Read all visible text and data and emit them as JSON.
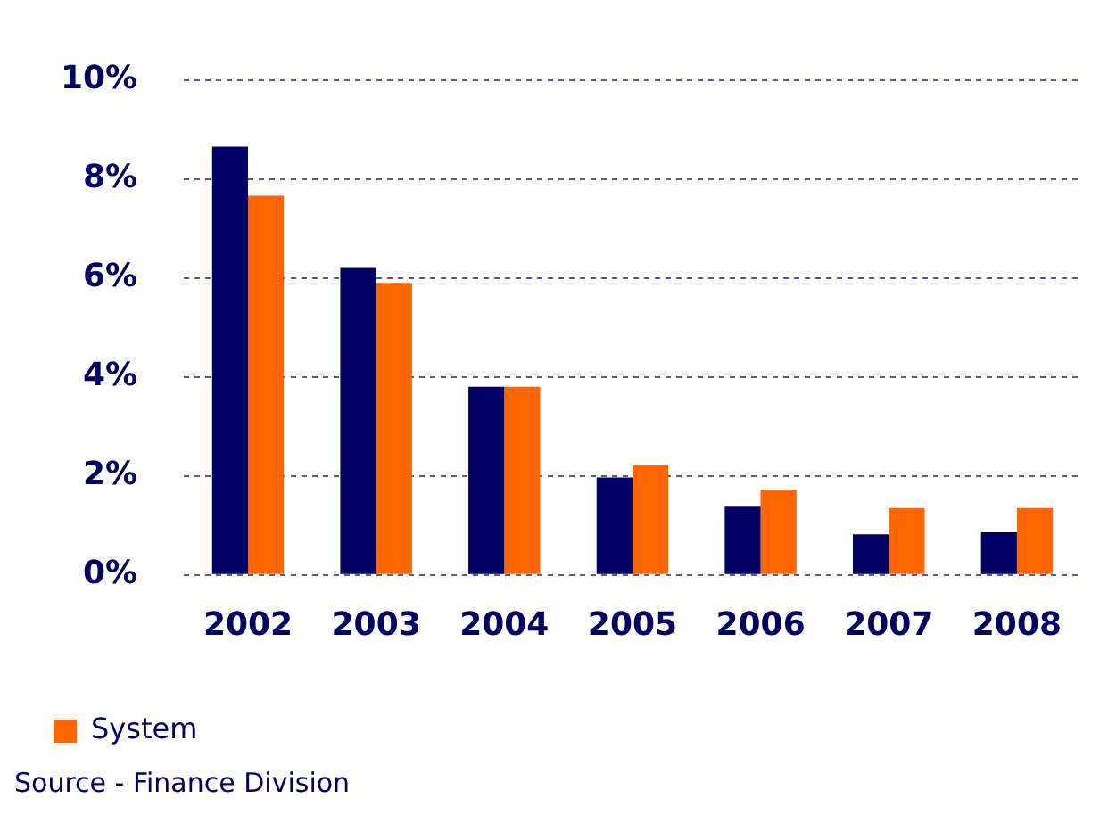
{
  "chart_data": {
    "type": "bar",
    "categories": [
      "2002",
      "2003",
      "2004",
      "2005",
      "2006",
      "2007",
      "2008"
    ],
    "series": [
      {
        "color": "#000066",
        "values": [
          8.65,
          6.2,
          3.8,
          1.97,
          1.38,
          0.82,
          0.86
        ]
      },
      {
        "name": "System",
        "color": "#ff6600",
        "values": [
          7.66,
          5.9,
          3.8,
          2.22,
          1.72,
          1.35,
          1.35
        ]
      }
    ],
    "ylim": [
      0,
      10
    ],
    "yticks": [
      {
        "value": 0,
        "label": "0%"
      },
      {
        "value": 2,
        "label": "2%"
      },
      {
        "value": 4,
        "label": "4%"
      },
      {
        "value": 6,
        "label": "6%"
      },
      {
        "value": 8,
        "label": "8%"
      },
      {
        "value": 10,
        "label": "10%"
      }
    ],
    "grid": "y",
    "legend": "bottom left",
    "annotations": [
      "Source - Finance Division"
    ]
  }
}
